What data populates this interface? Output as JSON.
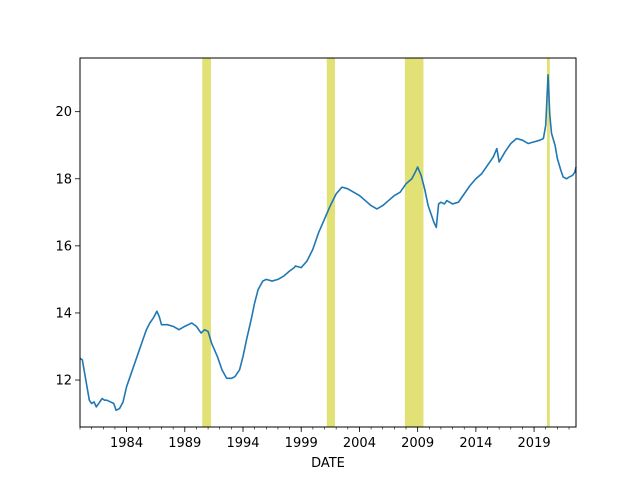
{
  "chart_data": {
    "type": "line",
    "title": "",
    "xlabel": "DATE",
    "ylabel": "",
    "xlim": [
      1980.0,
      2022.6
    ],
    "ylim": [
      10.6,
      21.6
    ],
    "grid": false,
    "x_ticks": [
      {
        "value": 1984,
        "label": "1984"
      },
      {
        "value": 1989,
        "label": "1989"
      },
      {
        "value": 1994,
        "label": "1994"
      },
      {
        "value": 1999,
        "label": "1999"
      },
      {
        "value": 2004,
        "label": "2004"
      },
      {
        "value": 2009,
        "label": "2009"
      },
      {
        "value": 2014,
        "label": "2014"
      },
      {
        "value": 2019,
        "label": "2019"
      }
    ],
    "y_ticks": [
      {
        "value": 12,
        "label": "12"
      },
      {
        "value": 14,
        "label": "14"
      },
      {
        "value": 16,
        "label": "16"
      },
      {
        "value": 18,
        "label": "18"
      },
      {
        "value": 20,
        "label": "20"
      }
    ],
    "colors": {
      "line": "#1f77b4",
      "recession": "#d4d43a"
    },
    "recessions": [
      {
        "start": 1990.5,
        "end": 1991.25
      },
      {
        "start": 2001.2,
        "end": 2001.9
      },
      {
        "start": 2007.9,
        "end": 2009.5
      },
      {
        "start": 2020.1,
        "end": 2020.35
      }
    ],
    "series": [
      {
        "x": [
          1980.0,
          1980.2,
          1980.4,
          1980.6,
          1980.8,
          1981.0,
          1981.2,
          1981.4,
          1981.6,
          1981.9,
          1982.1,
          1982.3,
          1982.6,
          1982.9,
          1983.1,
          1983.4,
          1983.7,
          1984.0,
          1984.3,
          1984.7,
          1985.0,
          1985.3,
          1985.7,
          1986.0,
          1986.3,
          1986.6,
          1986.8,
          1987.0,
          1987.5,
          1988.0,
          1988.5,
          1989.0,
          1989.3,
          1989.6,
          1990.0,
          1990.4,
          1990.7,
          1991.0,
          1991.3,
          1991.8,
          1992.2,
          1992.6,
          1993.0,
          1993.3,
          1993.7,
          1994.0,
          1994.3,
          1994.7,
          1995.0,
          1995.3,
          1995.7,
          1996.0,
          1996.5,
          1997.0,
          1997.5,
          1998.0,
          1998.4,
          1998.5,
          1999.0,
          1999.5,
          2000.0,
          2000.4,
          2000.5,
          2001.0,
          2001.5,
          2002.0,
          2002.5,
          2003.0,
          2003.5,
          2004.0,
          2004.5,
          2005.0,
          2005.5,
          2006.0,
          2006.5,
          2007.0,
          2007.5,
          2008.0,
          2008.5,
          2008.8,
          2009.0,
          2009.3,
          2009.6,
          2009.9,
          2010.2,
          2010.4,
          2010.6,
          2010.8,
          2011.0,
          2011.3,
          2011.5,
          2012.0,
          2012.5,
          2013.0,
          2013.5,
          2014.0,
          2014.5,
          2015.0,
          2015.5,
          2015.8,
          2016.0,
          2016.5,
          2017.0,
          2017.5,
          2018.0,
          2018.5,
          2019.0,
          2019.5,
          2019.8,
          2020.0,
          2020.2,
          2020.35,
          2020.5,
          2020.8,
          2021.0,
          2021.3,
          2021.5,
          2021.8,
          2022.0,
          2022.3,
          2022.5,
          2022.6
        ],
        "values": [
          12.65,
          12.6,
          12.2,
          11.8,
          11.4,
          11.3,
          11.35,
          11.2,
          11.3,
          11.45,
          11.4,
          11.4,
          11.35,
          11.3,
          11.1,
          11.15,
          11.35,
          11.8,
          12.1,
          12.5,
          12.8,
          13.1,
          13.5,
          13.7,
          13.85,
          14.05,
          13.9,
          13.65,
          13.65,
          13.6,
          13.5,
          13.6,
          13.65,
          13.7,
          13.6,
          13.4,
          13.5,
          13.45,
          13.1,
          12.7,
          12.3,
          12.05,
          12.05,
          12.1,
          12.3,
          12.7,
          13.2,
          13.8,
          14.3,
          14.7,
          14.95,
          15.0,
          14.95,
          15.0,
          15.1,
          15.25,
          15.35,
          15.4,
          15.35,
          15.55,
          15.9,
          16.3,
          16.4,
          16.8,
          17.2,
          17.55,
          17.75,
          17.7,
          17.6,
          17.5,
          17.35,
          17.2,
          17.1,
          17.2,
          17.35,
          17.5,
          17.6,
          17.85,
          18.0,
          18.2,
          18.35,
          18.1,
          17.7,
          17.2,
          16.9,
          16.7,
          16.55,
          17.25,
          17.3,
          17.25,
          17.35,
          17.25,
          17.3,
          17.55,
          17.8,
          18.0,
          18.15,
          18.4,
          18.65,
          18.9,
          18.5,
          18.8,
          19.05,
          19.2,
          19.15,
          19.05,
          19.1,
          19.15,
          19.2,
          19.6,
          21.1,
          19.9,
          19.35,
          19.0,
          18.6,
          18.25,
          18.05,
          18.0,
          18.05,
          18.1,
          18.2,
          18.35
        ]
      }
    ]
  }
}
